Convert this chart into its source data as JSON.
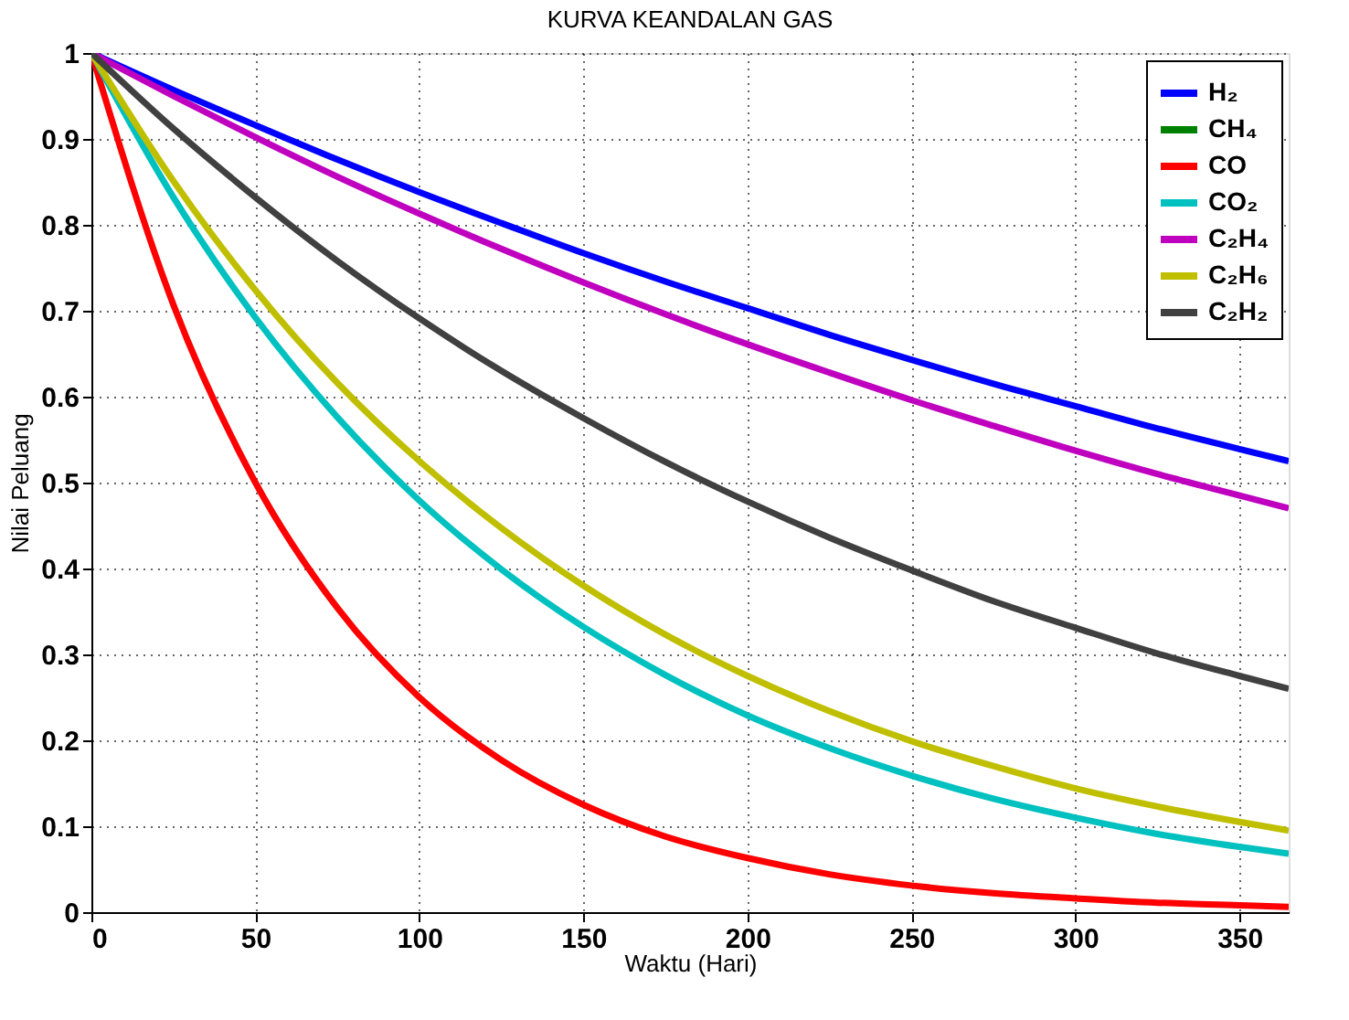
{
  "chart_data": {
    "type": "line",
    "title": "KURVA KEANDALAN GAS",
    "xlabel": "Waktu (Hari)",
    "ylabel": "Nilai Peluang",
    "x": [
      0,
      25,
      50,
      75,
      100,
      125,
      150,
      175,
      200,
      225,
      250,
      275,
      300,
      325,
      350,
      365
    ],
    "series": [
      {
        "name": "H₂",
        "color": "#0000ff",
        "values": [
          1,
          0.957,
          0.916,
          0.876,
          0.838,
          0.802,
          0.767,
          0.734,
          0.703,
          0.672,
          0.643,
          0.615,
          0.589,
          0.563,
          0.539,
          0.525
        ]
      },
      {
        "name": "CH₄",
        "color": "#008000",
        "values": [
          null,
          null,
          null,
          null,
          null,
          null,
          null,
          null,
          null,
          null,
          null,
          null,
          null,
          null,
          null,
          null
        ]
      },
      {
        "name": "CO",
        "color": "#ff0000",
        "values": [
          1,
          0.707,
          0.5,
          0.354,
          0.25,
          0.177,
          0.125,
          0.088,
          0.063,
          0.044,
          0.031,
          0.022,
          0.016,
          0.011,
          0.008,
          0.006
        ]
      },
      {
        "name": "CO₂",
        "color": "#00c0c0",
        "values": [
          1,
          0.832,
          0.692,
          0.576,
          0.479,
          0.399,
          0.332,
          0.276,
          0.229,
          0.191,
          0.159,
          0.132,
          0.11,
          0.091,
          0.076,
          0.068
        ]
      },
      {
        "name": "C₂H₄",
        "color": "#bf00bf",
        "values": [
          1,
          0.95,
          0.902,
          0.856,
          0.813,
          0.772,
          0.733,
          0.696,
          0.661,
          0.628,
          0.596,
          0.566,
          0.537,
          0.51,
          0.485,
          0.47
        ]
      },
      {
        "name": "C₂H₆",
        "color": "#bfbf00",
        "values": [
          1,
          0.851,
          0.724,
          0.616,
          0.525,
          0.447,
          0.38,
          0.323,
          0.275,
          0.234,
          0.199,
          0.17,
          0.144,
          0.123,
          0.105,
          0.095
        ]
      },
      {
        "name": "C₂H₂",
        "color": "#404040",
        "values": [
          1,
          0.912,
          0.832,
          0.758,
          0.691,
          0.63,
          0.575,
          0.524,
          0.478,
          0.436,
          0.398,
          0.362,
          0.331,
          0.301,
          0.275,
          0.26
        ]
      }
    ],
    "xlim": [
      0,
      365
    ],
    "xticks": [
      0,
      50,
      100,
      150,
      200,
      250,
      300,
      350
    ],
    "ylim": [
      0,
      1
    ],
    "yticks": [
      0,
      0.1,
      0.2,
      0.3,
      0.4,
      0.5,
      0.6,
      0.7,
      0.8,
      0.9,
      1
    ],
    "grid": true,
    "legend": "top right",
    "marker": "none",
    "line_style": "solid"
  }
}
